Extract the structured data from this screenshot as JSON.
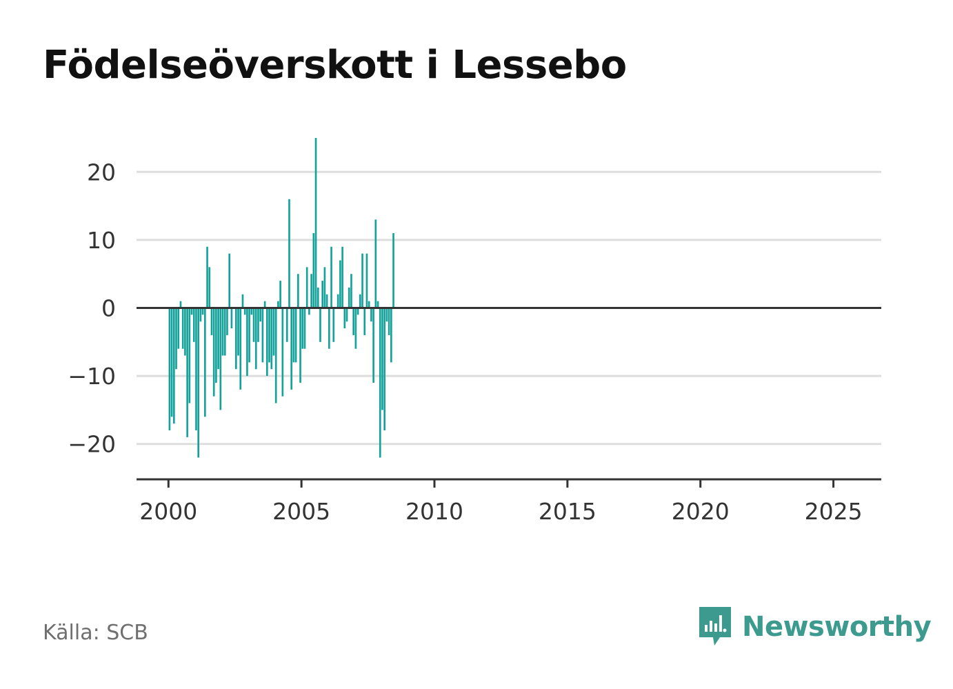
{
  "title": "Födelseöverskott i Lessebo",
  "source": "Källa: SCB",
  "brand": {
    "name": "Newsworthy",
    "icon": "newsworthy-logo-icon",
    "color": "#3d9a8f"
  },
  "colors": {
    "bar": "#13a19a",
    "grid": "#dddddd",
    "zero": "#333333",
    "axis": "#333333",
    "tick": "#333333"
  },
  "chart_data": {
    "type": "bar",
    "title": "Födelseöverskott i Lessebo",
    "xlabel": "",
    "ylabel": "",
    "x_ticks": [
      2000,
      2005,
      2010,
      2015,
      2020,
      2025
    ],
    "y_ticks": [
      20,
      10,
      0,
      -10,
      -20
    ],
    "y_tick_labels": [
      "20",
      "10",
      "0",
      "−10",
      "−20"
    ],
    "ylim": [
      -25.2,
      25
    ],
    "xlim": [
      1998.8,
      2026.8
    ],
    "grid": true,
    "legend": "none",
    "frequency": "monthly",
    "series": [
      {
        "start": "2000-01",
        "values": [
          -18,
          -16,
          -17,
          -9,
          -6,
          1,
          -6,
          -7,
          -19,
          -14,
          -1,
          -5,
          -18,
          -22,
          -2,
          -1,
          -16,
          9,
          6,
          -4,
          -13,
          -11,
          -9,
          -15,
          -7,
          -7,
          -4,
          8,
          -3,
          0,
          -9,
          -7,
          -12,
          2,
          -1,
          -10,
          -8,
          -1,
          -5,
          -9,
          -5,
          -2,
          -8,
          1,
          -10,
          -8,
          -9,
          -7,
          -14,
          1,
          4,
          -13,
          0,
          -5,
          16,
          -12,
          -8,
          -8,
          5,
          -11,
          -6,
          -6,
          6,
          -1,
          5,
          11,
          25,
          3,
          -5,
          4,
          6,
          2,
          -6,
          9,
          -5,
          0,
          2,
          7,
          9,
          -3,
          -2,
          3,
          5,
          -4,
          -6,
          -1,
          2,
          8,
          -4,
          8,
          1,
          -2,
          -11,
          13,
          1,
          -22,
          -15,
          -18,
          -2,
          -4,
          -8,
          11
        ]
      }
    ]
  }
}
